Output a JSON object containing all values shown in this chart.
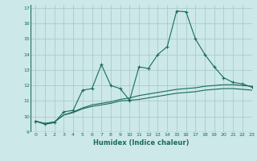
{
  "xlabel": "Humidex (Indice chaleur)",
  "ylabel": "",
  "bg_color": "#cce8e8",
  "line_color": "#1a6b5a",
  "grid_color": "#aacccc",
  "xlim": [
    -0.5,
    23
  ],
  "ylim": [
    9,
    17.2
  ],
  "yticks": [
    9,
    10,
    11,
    12,
    13,
    14,
    15,
    16,
    17
  ],
  "xticks": [
    0,
    1,
    2,
    3,
    4,
    5,
    6,
    7,
    8,
    9,
    10,
    11,
    12,
    13,
    14,
    15,
    16,
    17,
    18,
    19,
    20,
    21,
    22,
    23
  ],
  "line1_x": [
    0,
    1,
    2,
    3,
    4,
    5,
    6,
    7,
    8,
    9,
    10,
    11,
    12,
    13,
    14,
    15,
    16,
    17,
    18,
    19,
    20,
    21,
    22,
    23
  ],
  "line1_y": [
    9.7,
    9.5,
    9.6,
    10.3,
    10.4,
    11.7,
    11.8,
    13.35,
    12.0,
    11.8,
    11.05,
    13.2,
    13.1,
    14.0,
    14.5,
    16.8,
    16.75,
    15.0,
    14.0,
    13.2,
    12.5,
    12.2,
    12.1,
    11.9
  ],
  "line2_x": [
    0,
    1,
    2,
    3,
    4,
    5,
    6,
    7,
    8,
    9,
    10,
    11,
    12,
    13,
    14,
    15,
    16,
    17,
    18,
    19,
    20,
    21,
    22,
    23
  ],
  "line2_y": [
    9.7,
    9.55,
    9.65,
    10.1,
    10.3,
    10.55,
    10.75,
    10.85,
    10.95,
    11.1,
    11.2,
    11.35,
    11.45,
    11.55,
    11.65,
    11.75,
    11.8,
    11.85,
    11.95,
    12.0,
    12.05,
    12.05,
    12.0,
    11.95
  ],
  "line3_x": [
    0,
    1,
    2,
    3,
    4,
    5,
    6,
    7,
    8,
    9,
    10,
    11,
    12,
    13,
    14,
    15,
    16,
    17,
    18,
    19,
    20,
    21,
    22,
    23
  ],
  "line3_y": [
    9.7,
    9.55,
    9.65,
    10.1,
    10.25,
    10.5,
    10.65,
    10.75,
    10.85,
    11.0,
    11.05,
    11.1,
    11.2,
    11.3,
    11.4,
    11.5,
    11.55,
    11.6,
    11.7,
    11.75,
    11.8,
    11.8,
    11.75,
    11.7
  ]
}
